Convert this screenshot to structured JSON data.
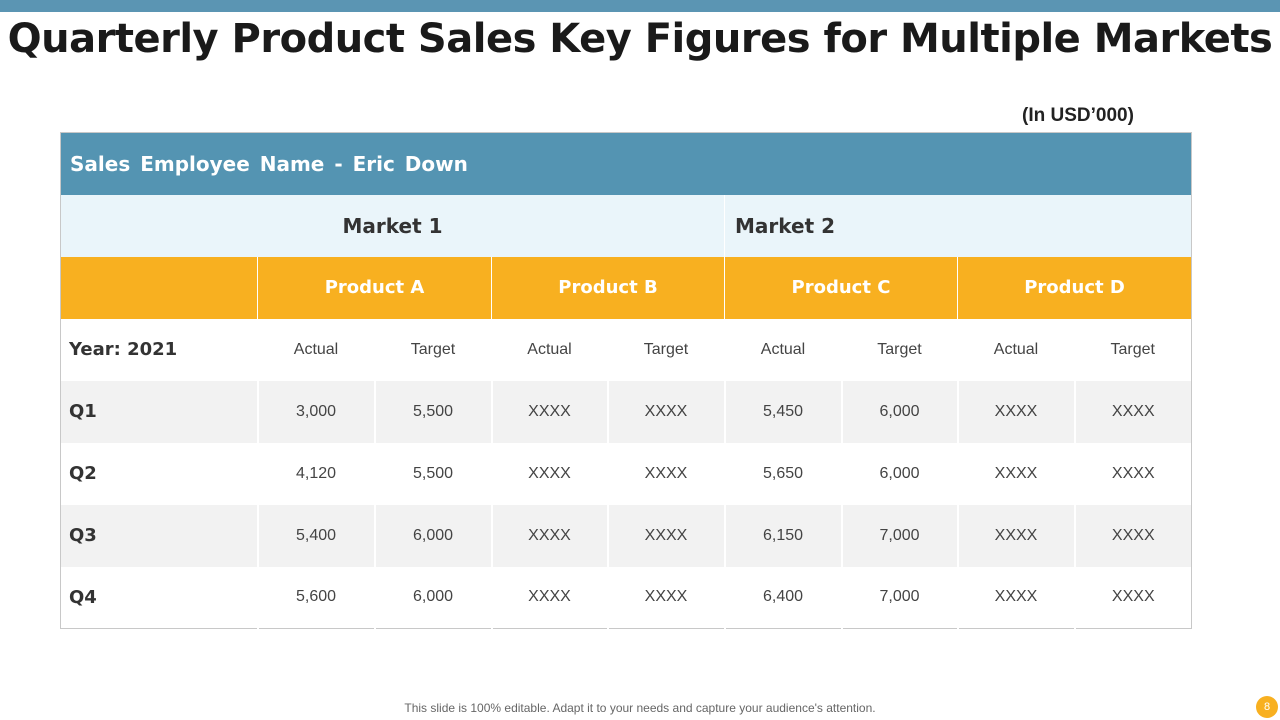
{
  "title": "Quarterly Product Sales Key Figures for Multiple Markets",
  "unit": "(In USD’000)",
  "employee_label": "Sales Employee  Name - Eric Down",
  "markets": [
    "Market 1",
    "Market 2"
  ],
  "products": [
    "Product A",
    "Product B",
    "Product C",
    "Product D"
  ],
  "year_label": "Year: 2021",
  "metric_labels": [
    "Actual",
    "Target",
    "Actual",
    "Target",
    "Actual",
    "Target",
    "Actual",
    "Target"
  ],
  "rows": [
    {
      "label": "Q1",
      "values": [
        "3,000",
        "5,500",
        "XXXX",
        "XXXX",
        "5,450",
        "6,000",
        "XXXX",
        "XXXX"
      ]
    },
    {
      "label": "Q2",
      "values": [
        "4,120",
        "5,500",
        "XXXX",
        "XXXX",
        "5,650",
        "6,000",
        "XXXX",
        "XXXX"
      ]
    },
    {
      "label": "Q3",
      "values": [
        "5,400",
        "6,000",
        "XXXX",
        "XXXX",
        "6,150",
        "7,000",
        "XXXX",
        "XXXX"
      ]
    },
    {
      "label": "Q4",
      "values": [
        "5,600",
        "6,000",
        "XXXX",
        "XXXX",
        "6,400",
        "7,000",
        "XXXX",
        "XXXX"
      ]
    }
  ],
  "footer": "This slide is 100% editable. Adapt it to your needs and capture your audience's attention.",
  "page_number": "8",
  "colors": {
    "header_blue": "#5494b2",
    "market_bg": "#eaf5fa",
    "product_orange": "#f8b020",
    "row_shade": "#f2f2f2"
  }
}
